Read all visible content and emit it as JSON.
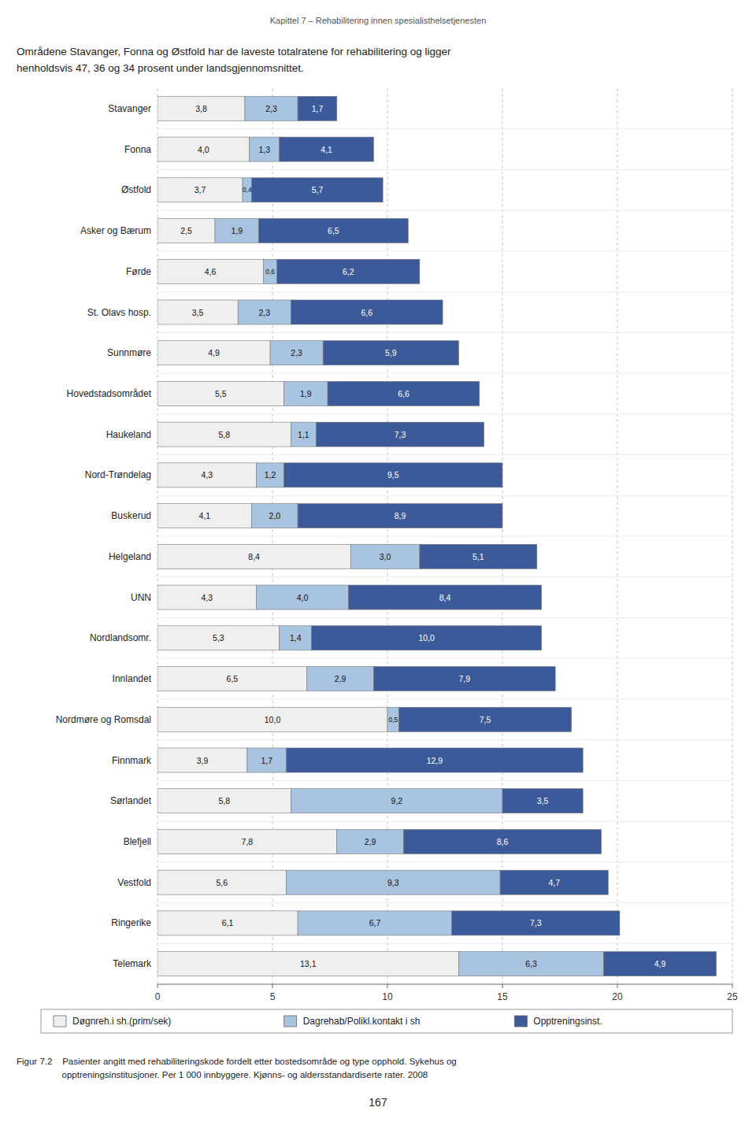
{
  "chart_data": {
    "type": "bar",
    "orientation": "horizontal",
    "stacked": true,
    "data_labels": true,
    "grid": true,
    "legend": "bottom",
    "title": "Kapittel 7 – Rehabilitering innen spesialisthelsetjenesten",
    "annotations": [
      "Områdene Stavanger, Fonna og Østfold har de laveste totalratene for rehabilitering og ligger",
      "henholdsvis 47, 36 og 34 prosent under landsgjennomsnittet.",
      "Figur 7.2    Pasienter angitt med rehabiliteringskode fordelt etter bostedsområde og type opphold. Sykehus og",
      "                  opptreningsinstitusjoner. Per 1 000 innbyggere. Kjønns- og aldersstandardiserte rater. 2008",
      "167"
    ],
    "categories": [
      "Stavanger",
      "Fonna",
      "Østfold",
      "Asker og Bærum",
      "Førde",
      "St. Olavs hosp.",
      "Sunnmøre",
      "Hovedstadsområdet",
      "Haukeland",
      "Nord-Trøndelag",
      "Buskerud",
      "Helgeland",
      "UNN",
      "Nordlandsomr.",
      "Innlandet",
      "Nordmøre og Romsdal",
      "Finnmark",
      "Sørlandet",
      "Blefjell",
      "Vestfold",
      "Ringerike",
      "Telemark"
    ],
    "series": [
      {
        "name": "Døgnreh.i sh.(prim/sek)",
        "color": "#efefef",
        "values": [
          3.8,
          4.0,
          3.7,
          2.5,
          4.6,
          3.5,
          4.9,
          5.5,
          5.8,
          4.3,
          4.1,
          8.4,
          4.3,
          5.3,
          6.5,
          10.0,
          3.9,
          5.8,
          7.8,
          5.6,
          6.1,
          13.1
        ],
        "value_labels": [
          "3,8",
          "4,0",
          "3,7",
          "2,5",
          "4,6",
          "3,5",
          "4,9",
          "5,5",
          "5,8",
          "4,3",
          "4,1",
          "8,4",
          "4,3",
          "5,3",
          "6,5",
          "10,0",
          "3,9",
          "5,8",
          "7,8",
          "5,6",
          "6,1",
          "13,1"
        ]
      },
      {
        "name": "Dagrehab/Polikl.kontakt i sh",
        "color": "#a8c4e0",
        "values": [
          2.3,
          1.3,
          0.4,
          1.9,
          0.6,
          2.3,
          2.3,
          1.9,
          1.1,
          1.2,
          2.0,
          3.0,
          4.0,
          1.4,
          2.9,
          0.5,
          1.7,
          9.2,
          2.9,
          9.3,
          6.7,
          6.3
        ],
        "value_labels": [
          "2,3",
          "1,3",
          "0,4",
          "1,9",
          "0,6",
          "2,3",
          "2,3",
          "1,9",
          "1,1",
          "1,2",
          "2,0",
          "3,0",
          "4,0",
          "1,4",
          "2,9",
          "0,5",
          "1,7",
          "9,2",
          "2,9",
          "9,3",
          "6,7",
          "6,3"
        ]
      },
      {
        "name": "Opptreningsinst.",
        "color": "#3c5a9a",
        "values": [
          1.7,
          4.1,
          5.7,
          6.5,
          6.2,
          6.6,
          5.9,
          6.6,
          7.3,
          9.5,
          8.9,
          5.1,
          8.4,
          10.0,
          7.9,
          7.5,
          12.9,
          3.5,
          8.6,
          4.7,
          7.3,
          4.9
        ],
        "value_labels": [
          "1,7",
          "4,1",
          "5,7",
          "6,5",
          "6,2",
          "6,6",
          "5,9",
          "6,6",
          "7,3",
          "9,5",
          "8,9",
          "5,1",
          "8,4",
          "10,0",
          "7,9",
          "7,5",
          "12,9",
          "3,5",
          "8,6",
          "4,7",
          "7,3",
          "4,9"
        ]
      }
    ],
    "xlim": [
      0,
      25
    ],
    "xticks": [
      0,
      5,
      10,
      15,
      20,
      25
    ]
  }
}
